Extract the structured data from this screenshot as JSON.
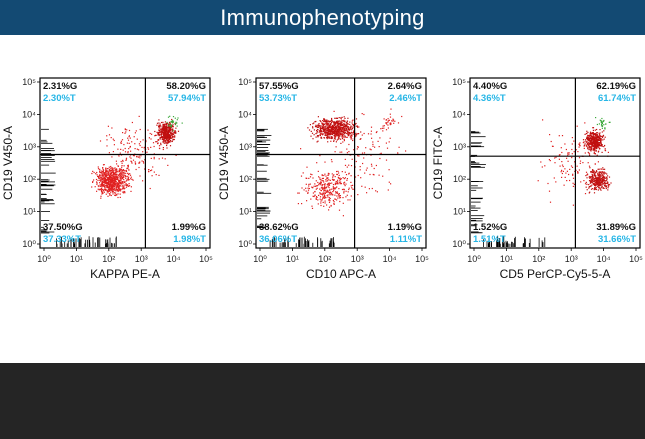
{
  "header": {
    "title": "Immunophenotyping"
  },
  "colors": {
    "banner": "#134a73",
    "footer": "#252525",
    "gate_text": "#111111",
    "tube_text": "#27b6e6",
    "dots": "#e02020",
    "dense": "#c01010",
    "green": "#3aa83a"
  },
  "chart_data": [
    {
      "type": "scatter",
      "xlabel": "KAPPA PE-A",
      "ylabel": "CD19 V450-A",
      "x_ticks": [
        "10⁰",
        "10¹",
        "10²",
        "10³",
        "10⁴",
        "10⁵"
      ],
      "y_ticks": [
        "10⁰",
        "10¹",
        "10²",
        "10³",
        "10⁴",
        "10⁵"
      ],
      "scale": "log",
      "quadrants": {
        "upper_left": {
          "g": "2.31%G",
          "t": "2.30%T"
        },
        "upper_right": {
          "g": "58.20%G",
          "t": "57.94%T"
        },
        "lower_left": {
          "g": "37.50%G",
          "t": "37.33%T"
        },
        "lower_right": {
          "g": "1.99%G",
          "t": "1.98%T"
        }
      }
    },
    {
      "type": "scatter",
      "xlabel": "CD10 APC-A",
      "ylabel": "CD19 V450-A",
      "x_ticks": [
        "10⁰",
        "10¹",
        "10²",
        "10³",
        "10⁴",
        "10⁵"
      ],
      "y_ticks": [
        "10⁰",
        "10¹",
        "10²",
        "10³",
        "10⁴",
        "10⁵"
      ],
      "scale": "log",
      "quadrants": {
        "upper_left": {
          "g": "57.55%G",
          "t": "53.73%T"
        },
        "upper_right": {
          "g": "2.64%G",
          "t": "2.46%T"
        },
        "lower_left": {
          "g": "38.62%G",
          "t": "36.06%T"
        },
        "lower_right": {
          "g": "1.19%G",
          "t": "1.11%T"
        }
      }
    },
    {
      "type": "scatter",
      "xlabel": "CD5 PerCP-Cy5-5-A",
      "ylabel": "CD19 FITC-A",
      "x_ticks": [
        "10⁰",
        "10¹",
        "10²",
        "10³",
        "10⁴",
        "10⁵"
      ],
      "y_ticks": [
        "10⁰",
        "10¹",
        "10²",
        "10³",
        "10⁴",
        "10⁵"
      ],
      "scale": "log",
      "quadrants": {
        "upper_left": {
          "g": "4.40%G",
          "t": "4.36%T"
        },
        "upper_right": {
          "g": "62.19%G",
          "t": "61.74%T"
        },
        "lower_left": {
          "g": "1.52%G",
          "t": "1.51%T"
        },
        "lower_right": {
          "g": "31.89%G",
          "t": "31.66%T"
        }
      }
    }
  ]
}
